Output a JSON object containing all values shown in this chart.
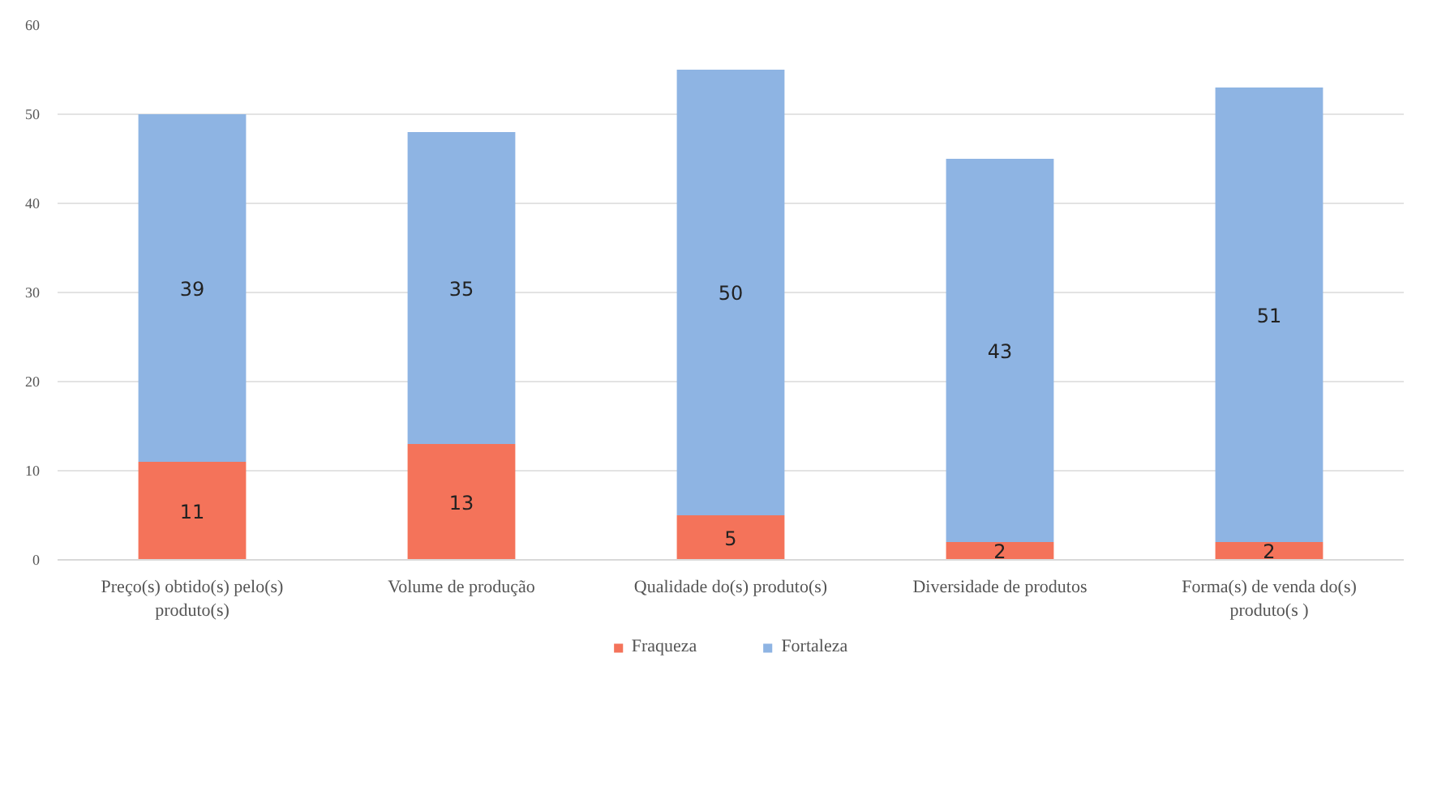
{
  "chart_data": {
    "type": "bar",
    "stacked": true,
    "categories": [
      "Preço(s) obtido(s) pelo(s) produto(s)",
      "Volume de produção",
      "Qualidade do(s) produto(s)",
      "Diversidade de produtos",
      "Forma(s) de venda do(s) produto(s )"
    ],
    "series": [
      {
        "name": "Fraqueza",
        "color": "#f4735a",
        "values": [
          11,
          13,
          5,
          2,
          2
        ]
      },
      {
        "name": "Fortaleza",
        "color": "#8eb4e3",
        "values": [
          39,
          35,
          50,
          43,
          51
        ]
      }
    ],
    "ylim": [
      0,
      60
    ],
    "yticks": [
      0,
      10,
      20,
      30,
      40,
      50,
      60
    ],
    "grid": "y",
    "legend": "bottom",
    "data_labels": true
  }
}
